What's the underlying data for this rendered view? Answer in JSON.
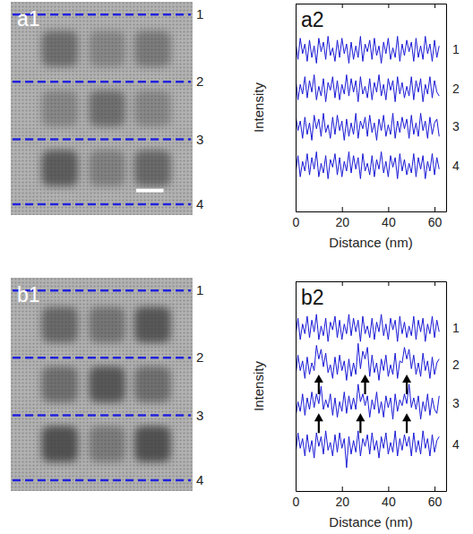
{
  "images": [
    {
      "label": "a1",
      "line_labels": [
        "1",
        "2",
        "3",
        "4"
      ]
    },
    {
      "label": "b1",
      "line_labels": [
        "1",
        "2",
        "3",
        "4"
      ]
    }
  ],
  "chart_data": [
    {
      "type": "line",
      "title": "a2",
      "x_label": "Distance (nm)",
      "y_label": "Intensity",
      "xlim": [
        0,
        65
      ],
      "xticks": [
        0,
        20,
        40,
        60
      ],
      "ylim": [
        -1.2,
        4.2
      ],
      "yticks": [],
      "tick_labels": "x",
      "x": [
        0,
        1,
        2,
        3,
        4,
        5,
        6,
        7,
        8,
        9,
        10,
        11,
        12,
        13,
        14,
        15,
        16,
        17,
        18,
        19,
        20,
        21,
        22,
        23,
        24,
        25,
        26,
        27,
        28,
        29,
        30,
        31,
        32,
        33,
        34,
        35,
        36,
        37,
        38,
        39,
        40,
        41,
        42,
        43,
        44,
        45,
        46,
        47,
        48,
        49,
        50,
        51,
        52,
        53,
        54,
        55,
        56,
        57,
        58,
        59,
        60,
        61,
        62
      ],
      "series": [
        {
          "name": "1",
          "color": "#1a1ad6",
          "values": [
            3.2,
            2.75,
            3.3,
            2.9,
            3.15,
            2.7,
            3.25,
            2.8,
            3.1,
            2.65,
            3.3,
            2.95,
            3.2,
            2.75,
            3.35,
            2.85,
            3.05,
            2.7,
            3.25,
            2.8,
            3.3,
            2.9,
            3.15,
            2.65,
            3.2,
            2.75,
            3.1,
            2.8,
            3.35,
            2.7,
            3.15,
            2.95,
            3.25,
            2.75,
            3.3,
            2.85,
            3.1,
            2.65,
            3.2,
            2.9,
            3.3,
            2.75,
            3.05,
            2.8,
            3.35,
            2.7,
            3.15,
            2.85,
            3.25,
            2.95,
            3.2,
            2.7,
            3.3,
            2.8,
            3.1,
            2.75,
            3.35,
            2.9,
            3.15,
            2.7,
            3.25,
            2.8,
            3.1
          ]
        },
        {
          "name": "2",
          "color": "#1a1ad6",
          "values": [
            2.25,
            1.7,
            2.1,
            1.85,
            2.3,
            1.75,
            2.2,
            1.9,
            2.35,
            1.7,
            2.05,
            1.8,
            2.25,
            1.65,
            2.15,
            1.95,
            2.3,
            1.75,
            2.2,
            1.7,
            2.1,
            1.85,
            2.35,
            1.8,
            2.25,
            1.9,
            2.2,
            1.65,
            2.3,
            1.85,
            2.05,
            1.75,
            2.25,
            1.7,
            2.15,
            1.9,
            2.35,
            1.8,
            2.1,
            1.7,
            2.25,
            1.95,
            2.2,
            1.65,
            2.3,
            1.85,
            2.15,
            1.75,
            2.05,
            1.8,
            2.3,
            1.7,
            2.2,
            1.9,
            2.25,
            1.65,
            2.1,
            1.85,
            2.3,
            1.75,
            2.2,
            1.9,
            1.8
          ]
        },
        {
          "name": "3",
          "color": "#1a1ad6",
          "values": [
            1.3,
            0.9,
            1.15,
            0.7,
            1.25,
            0.8,
            1.1,
            0.65,
            1.3,
            0.95,
            1.2,
            0.75,
            1.35,
            0.85,
            1.05,
            0.7,
            1.25,
            0.8,
            1.3,
            0.9,
            1.15,
            0.65,
            1.2,
            0.75,
            1.1,
            0.8,
            1.35,
            0.7,
            1.15,
            0.95,
            1.25,
            0.75,
            1.3,
            0.85,
            1.1,
            0.65,
            1.2,
            0.9,
            1.3,
            0.75,
            1.05,
            0.8,
            1.35,
            0.7,
            1.15,
            0.85,
            1.25,
            0.95,
            1.2,
            0.7,
            1.3,
            0.8,
            1.1,
            0.75,
            1.35,
            0.9,
            1.15,
            0.7,
            1.25,
            0.8,
            1.1,
            1.2,
            0.75
          ]
        },
        {
          "name": "4",
          "color": "#1a1ad6",
          "values": [
            -0.2,
            0.25,
            -0.3,
            0.1,
            -0.15,
            0.3,
            -0.25,
            0.2,
            -0.1,
            0.35,
            -0.3,
            0.05,
            -0.2,
            0.25,
            -0.35,
            0.15,
            -0.05,
            0.3,
            -0.25,
            0.2,
            -0.3,
            0.1,
            -0.15,
            0.35,
            -0.2,
            0.25,
            -0.1,
            0.2,
            -0.35,
            0.3,
            -0.15,
            0.05,
            -0.25,
            0.25,
            -0.3,
            0.15,
            -0.1,
            0.35,
            -0.2,
            0.1,
            -0.3,
            0.25,
            -0.05,
            0.2,
            -0.35,
            0.3,
            -0.15,
            0.15,
            -0.25,
            0.05,
            -0.2,
            0.3,
            -0.3,
            0.2,
            -0.1,
            0.25,
            -0.35,
            0.1,
            -0.15,
            0.3,
            -0.25,
            0.2,
            -0.1
          ]
        }
      ]
    },
    {
      "type": "line",
      "title": "b2",
      "x_label": "Distance (nm)",
      "y_label": "Intensity",
      "xlim": [
        0,
        65
      ],
      "xticks": [
        0,
        20,
        40,
        60
      ],
      "ylim": [
        -1.2,
        4.2
      ],
      "yticks": [],
      "tick_labels": "x",
      "x": [
        0,
        1,
        2,
        3,
        4,
        5,
        6,
        7,
        8,
        9,
        10,
        11,
        12,
        13,
        14,
        15,
        16,
        17,
        18,
        19,
        20,
        21,
        22,
        23,
        24,
        25,
        26,
        27,
        28,
        29,
        30,
        31,
        32,
        33,
        34,
        35,
        36,
        37,
        38,
        39,
        40,
        41,
        42,
        43,
        44,
        45,
        46,
        47,
        48,
        49,
        50,
        51,
        52,
        53,
        54,
        55,
        56,
        57,
        58,
        59,
        60,
        61,
        62
      ],
      "series": [
        {
          "name": "1",
          "color": "#1a1ad6",
          "values": [
            2.8,
            3.25,
            2.7,
            3.1,
            2.85,
            3.3,
            2.75,
            3.2,
            2.9,
            3.35,
            2.7,
            3.05,
            2.8,
            3.25,
            2.65,
            3.15,
            2.95,
            3.3,
            2.75,
            3.2,
            2.7,
            3.1,
            2.85,
            3.35,
            2.8,
            3.25,
            2.9,
            3.2,
            2.65,
            3.3,
            2.85,
            3.05,
            2.75,
            3.25,
            2.7,
            3.15,
            2.9,
            3.35,
            2.8,
            3.1,
            2.7,
            3.25,
            2.95,
            3.2,
            2.65,
            3.3,
            2.85,
            3.15,
            2.75,
            3.05,
            2.8,
            3.3,
            2.7,
            3.2,
            2.9,
            3.25,
            2.65,
            3.1,
            2.85,
            3.3,
            2.75,
            3.2,
            2.9
          ]
        },
        {
          "name": "2",
          "color": "#1a1ad6",
          "values": [
            1.75,
            2.3,
            1.9,
            2.15,
            1.7,
            2.25,
            1.8,
            2.1,
            1.9,
            2.55,
            2.2,
            2.45,
            2.0,
            2.35,
            1.85,
            2.05,
            1.7,
            2.25,
            1.8,
            2.3,
            1.9,
            2.15,
            1.65,
            2.2,
            1.75,
            2.1,
            1.8,
            2.6,
            1.95,
            2.4,
            2.2,
            2.5,
            1.75,
            2.3,
            1.85,
            2.1,
            1.65,
            2.2,
            1.9,
            2.3,
            1.75,
            2.05,
            1.8,
            2.35,
            1.7,
            2.15,
            2.1,
            2.5,
            2.2,
            2.45,
            1.95,
            2.3,
            1.8,
            2.1,
            1.75,
            2.35,
            1.9,
            2.15,
            1.7,
            2.25,
            1.8,
            2.1,
            2.2
          ]
        },
        {
          "name": "3",
          "color": "#1a1ad6",
          "values": [
            0.7,
            1.1,
            0.85,
            1.3,
            0.75,
            1.2,
            0.9,
            1.35,
            0.95,
            1.3,
            1.05,
            1.5,
            0.9,
            1.15,
            0.95,
            1.3,
            0.75,
            1.2,
            0.7,
            1.1,
            0.85,
            1.35,
            0.8,
            1.25,
            0.9,
            1.2,
            0.9,
            1.55,
            1.1,
            1.3,
            1.0,
            1.25,
            0.7,
            1.15,
            0.9,
            1.35,
            0.8,
            1.1,
            0.7,
            1.25,
            0.95,
            1.2,
            0.65,
            1.3,
            0.85,
            1.15,
            1.0,
            1.3,
            1.05,
            1.55,
            0.95,
            1.2,
            0.9,
            1.25,
            0.65,
            1.1,
            0.85,
            1.3,
            0.75,
            1.2,
            0.9,
            0.8,
            1.25
          ]
        },
        {
          "name": "4",
          "color": "#1a1ad6",
          "values": [
            -0.25,
            0.3,
            -0.1,
            0.15,
            -0.3,
            0.25,
            -0.2,
            0.1,
            -0.35,
            0.3,
            -0.05,
            0.2,
            -0.25,
            0.35,
            -0.15,
            0.05,
            -0.3,
            0.25,
            -0.2,
            0.3,
            -0.1,
            0.15,
            -0.6,
            0.2,
            -0.25,
            0.1,
            -0.2,
            0.35,
            -0.3,
            0.15,
            -0.05,
            0.25,
            -0.25,
            0.3,
            -0.15,
            0.1,
            -0.35,
            0.2,
            -0.1,
            0.3,
            -0.25,
            0.05,
            -0.2,
            0.35,
            -0.3,
            0.15,
            -0.15,
            0.25,
            -0.05,
            0.2,
            -0.3,
            0.3,
            -0.2,
            0.1,
            -0.25,
            0.35,
            -0.1,
            0.15,
            -0.3,
            0.25,
            -0.2,
            0.1,
            0.2
          ]
        }
      ],
      "arrows": {
        "x": [
          10,
          30,
          48,
          10,
          28,
          48
        ],
        "y": [
          1.8,
          1.8,
          1.8,
          0.8,
          0.8,
          0.8
        ]
      }
    }
  ]
}
